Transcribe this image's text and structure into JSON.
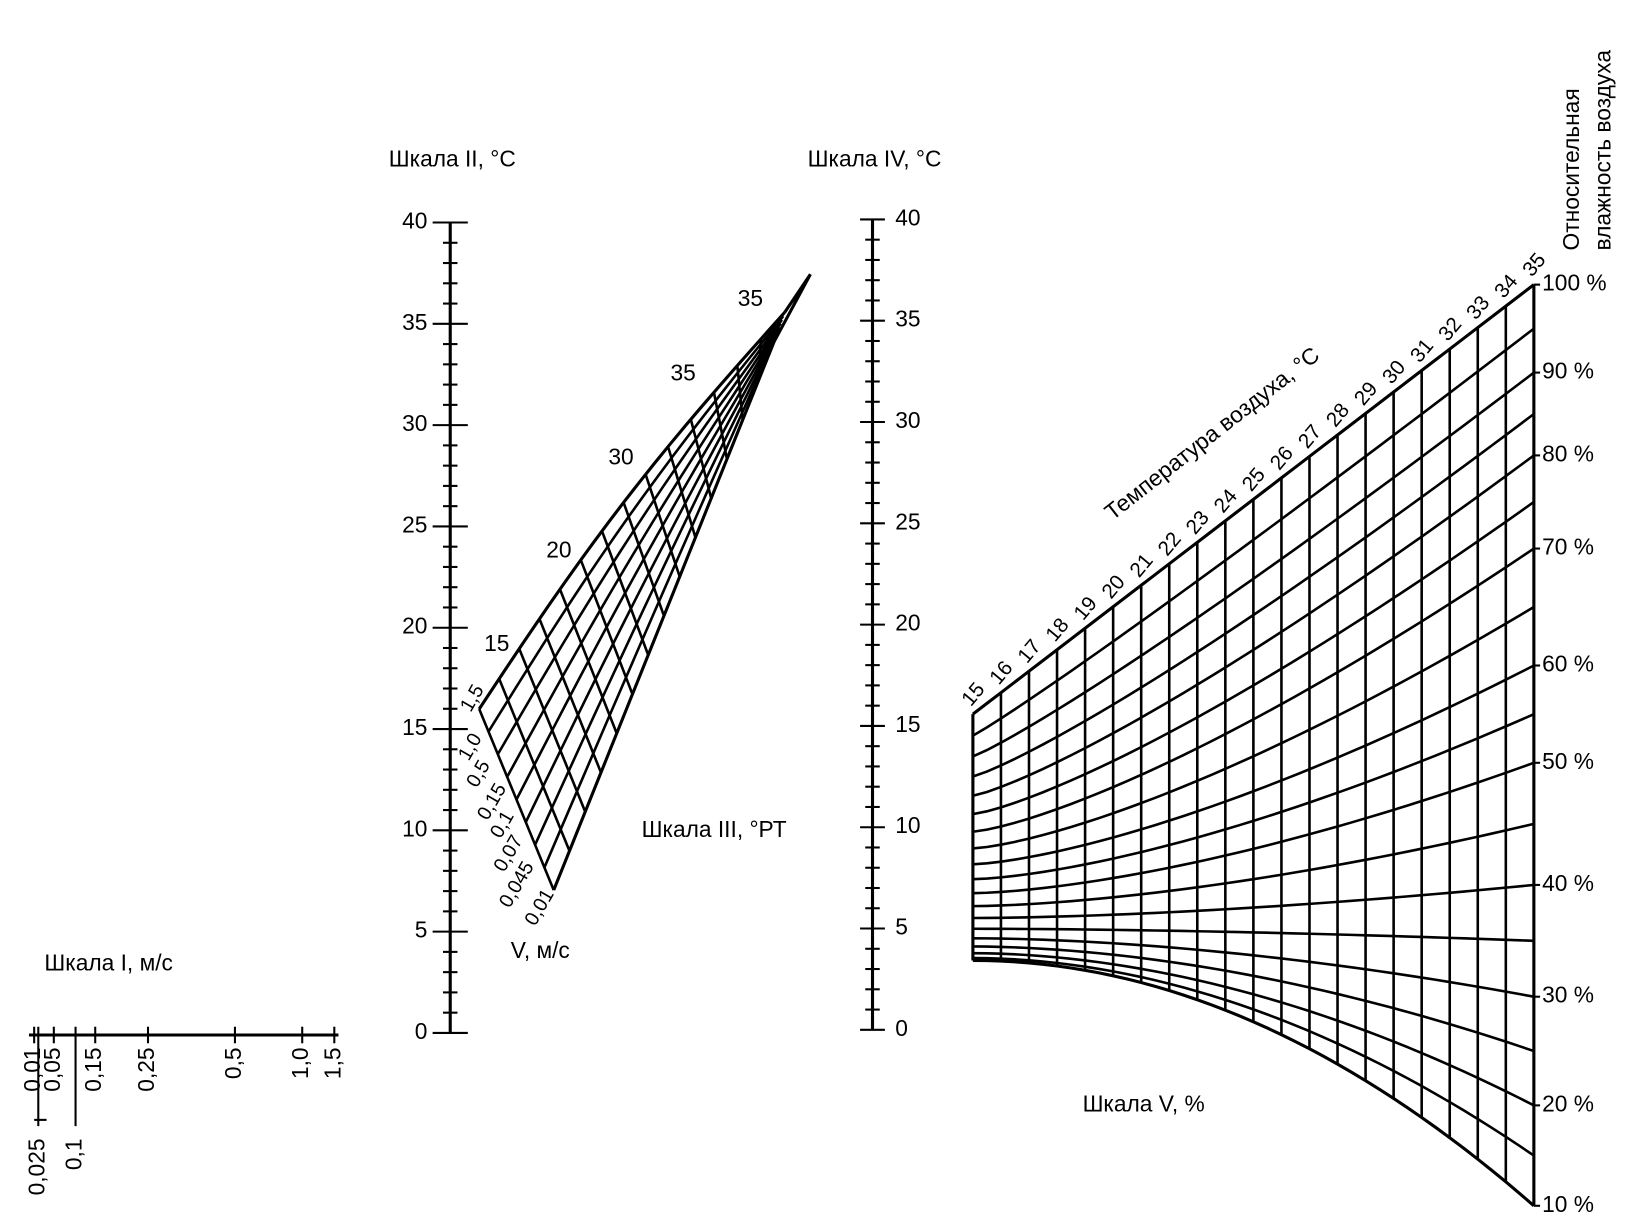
{
  "scale_1": {
    "title": "Шкала I, м/с",
    "labels": [
      "0,01",
      "0,025",
      "0,05",
      "0,1",
      "0,15",
      "0,25",
      "0,5",
      "1,0",
      "1,5"
    ]
  },
  "scale_2": {
    "title": "Шкала II, °C",
    "labels": [
      "0",
      "5",
      "10",
      "15",
      "20",
      "25",
      "30",
      "35",
      "40"
    ]
  },
  "scale_3": {
    "title": "Шкала III, °РТ",
    "temperature_labels": [
      "15",
      "20",
      "30",
      "35",
      "35"
    ],
    "velocity_labels": [
      "1,5",
      "1,0",
      "0,5",
      "0,15",
      "0,1",
      "0,07",
      "0,045",
      "0,01"
    ],
    "velocity_title": "V, м/с"
  },
  "scale_4": {
    "title": "Шкала IV, °C",
    "labels": [
      "0",
      "5",
      "10",
      "15",
      "20",
      "25",
      "30",
      "35",
      "40"
    ]
  },
  "scale_5": {
    "title": "Шкала V, %",
    "temperature_title": "Температура воздуха, °C",
    "temperature_labels": [
      "15",
      "16",
      "17",
      "18",
      "19",
      "20",
      "21",
      "22",
      "23",
      "24",
      "25",
      "26",
      "27",
      "28",
      "29",
      "30",
      "31",
      "32",
      "33",
      "34",
      "35"
    ],
    "humidity_title": [
      "Относительная",
      "влажность воздуха"
    ],
    "humidity_labels": [
      "10 %",
      "20 %",
      "30 %",
      "40 %",
      "50 %",
      "60 %",
      "70 %",
      "80 %",
      "90 %",
      "100 %"
    ]
  }
}
